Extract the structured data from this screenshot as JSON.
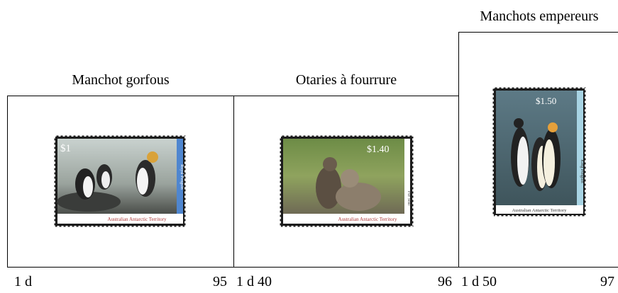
{
  "panels": [
    {
      "title": "Manchot gorfous",
      "stamp": {
        "value": "$1",
        "name": "Royal Penguin",
        "country": "Australian Antarctic Territory"
      },
      "caption": {
        "denomination": "1 d",
        "number": "95"
      }
    },
    {
      "title": "Otaries à fourrure",
      "stamp": {
        "value": "$1.40",
        "name": "Fur Seal",
        "country": "Australian Antarctic Territory"
      },
      "caption": {
        "denomination": "1 d 40",
        "number": "96"
      }
    },
    {
      "title": "Manchots empereurs",
      "stamp": {
        "value": "$1.50",
        "name": "King Penguin",
        "country": "Australian Antarctic Territory"
      },
      "caption": {
        "denomination": "1 d 50",
        "number": "97"
      }
    }
  ]
}
